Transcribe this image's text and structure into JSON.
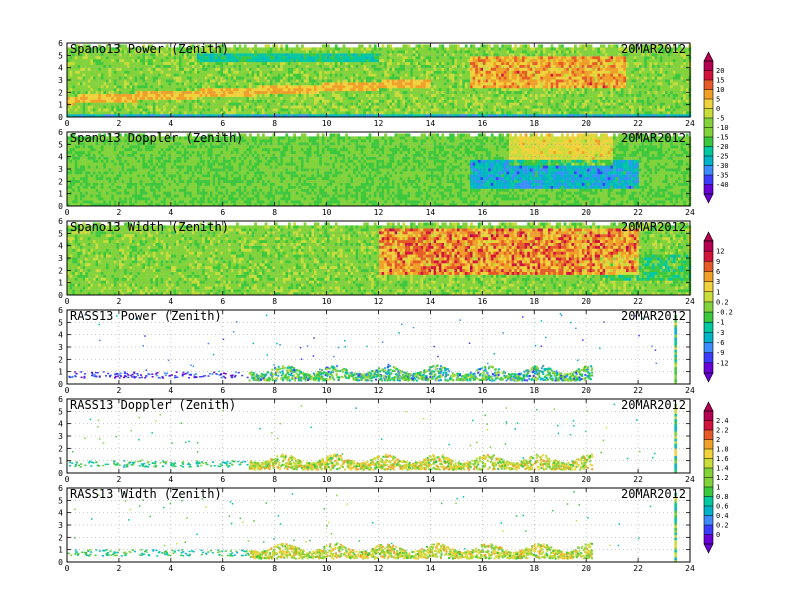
{
  "colors": {
    "palette": [
      "#6a00d8",
      "#3c3cff",
      "#3c8cff",
      "#00b4c8",
      "#00c8a0",
      "#3cc83c",
      "#82d23c",
      "#c8dc3c",
      "#f0d23c",
      "#f0a028",
      "#e65a28",
      "#d2143c",
      "#b40050"
    ]
  },
  "chart_data": [
    {
      "type": "heatmap",
      "title": "Spano13 Power (Zenith)",
      "date": "20MAR2012",
      "xticks": [
        "0",
        "2",
        "4",
        "6",
        "8",
        "10",
        "12",
        "14",
        "16",
        "18",
        "20",
        "22",
        "24"
      ],
      "yticks": [
        "0",
        "1",
        "2",
        "3",
        "4",
        "5",
        "6"
      ],
      "xlim": [
        0,
        24
      ],
      "ylim": [
        0,
        6
      ],
      "grid": true,
      "colorbar": [
        "20",
        "15",
        "10",
        "5",
        "0",
        "-5",
        "-10",
        "-15",
        "-20",
        "-25",
        "-30",
        "-35",
        "-40"
      ]
    },
    {
      "type": "heatmap",
      "title": "Spano13 Doppler (Zenith)",
      "date": "20MAR2012",
      "xticks": [
        "0",
        "2",
        "4",
        "6",
        "8",
        "10",
        "12",
        "14",
        "16",
        "18",
        "20",
        "22",
        "24"
      ],
      "yticks": [
        "0",
        "1",
        "2",
        "3",
        "4",
        "5",
        "6"
      ],
      "xlim": [
        0,
        24
      ],
      "ylim": [
        0,
        6
      ],
      "grid": true
    },
    {
      "type": "heatmap",
      "title": "Spano13 Width (Zenith)",
      "date": "20MAR2012",
      "xticks": [
        "0",
        "2",
        "4",
        "6",
        "8",
        "10",
        "12",
        "14",
        "16",
        "18",
        "20",
        "22",
        "24"
      ],
      "yticks": [
        "0",
        "1",
        "2",
        "3",
        "4",
        "5",
        "6"
      ],
      "xlim": [
        0,
        24
      ],
      "ylim": [
        0,
        6
      ],
      "grid": true,
      "colorbar": [
        "12",
        "9",
        "6",
        "3",
        "1",
        "0.2",
        "-0.2",
        "-1",
        "-3",
        "-6",
        "-9",
        "-12"
      ]
    },
    {
      "type": "scatter",
      "title": "RASS13 Power (Zenith)",
      "date": "20MAR2012",
      "xticks": [
        "0",
        "2",
        "4",
        "6",
        "8",
        "10",
        "12",
        "14",
        "16",
        "18",
        "20",
        "22",
        "24"
      ],
      "yticks": [
        "0",
        "1",
        "2",
        "3",
        "4",
        "5",
        "6"
      ],
      "xlim": [
        0,
        24
      ],
      "ylim": [
        0,
        6
      ],
      "grid": true
    },
    {
      "type": "scatter",
      "title": "RASS13 Doppler (Zenith)",
      "date": "20MAR2012",
      "xticks": [
        "0",
        "2",
        "4",
        "6",
        "8",
        "10",
        "12",
        "14",
        "16",
        "18",
        "20",
        "22",
        "24"
      ],
      "yticks": [
        "0",
        "1",
        "2",
        "3",
        "4",
        "5",
        "6"
      ],
      "xlim": [
        0,
        24
      ],
      "ylim": [
        0,
        6
      ],
      "grid": true,
      "colorbar": [
        "2.4",
        "2.2",
        "2",
        "1.8",
        "1.6",
        "1.4",
        "1.2",
        "1",
        "0.8",
        "0.6",
        "0.4",
        "0.2",
        "0"
      ]
    },
    {
      "type": "scatter",
      "title": "RASS13 Width (Zenith)",
      "date": "20MAR2012",
      "xticks": [
        "0",
        "2",
        "4",
        "6",
        "8",
        "10",
        "12",
        "14",
        "16",
        "18",
        "20",
        "22",
        "24"
      ],
      "yticks": [
        "0",
        "1",
        "2",
        "3",
        "4",
        "5",
        "6"
      ],
      "xlim": [
        0,
        24
      ],
      "ylim": [
        0,
        6
      ],
      "grid": true
    }
  ]
}
